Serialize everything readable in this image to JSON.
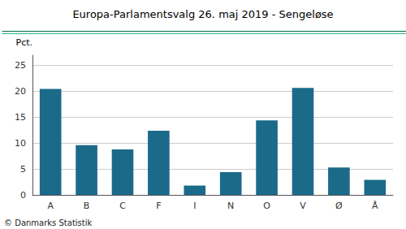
{
  "chart_data": {
    "type": "bar",
    "title": "Europa-Parlamentsvalg 26. maj 2019 - Sengeløse",
    "categories": [
      "A",
      "B",
      "C",
      "F",
      "I",
      "N",
      "O",
      "V",
      "Ø",
      "Å"
    ],
    "values": [
      20.5,
      9.6,
      8.8,
      12.4,
      1.8,
      4.4,
      14.4,
      20.7,
      5.3,
      2.9
    ],
    "color": "#1b6a8a",
    "ylabel": "Pct.",
    "annotations": [
      "© Danmarks Statistik"
    ],
    "ylim": [
      0,
      27
    ],
    "yticks": [
      0,
      5,
      10,
      15,
      20,
      25
    ],
    "grid": true
  }
}
